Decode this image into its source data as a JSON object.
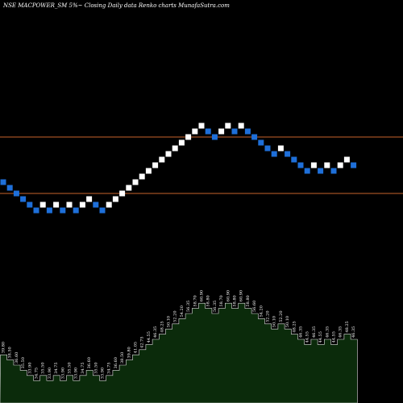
{
  "chart_data": {
    "type": "renko",
    "title": "NSE MACPOWER_SM 5%~   Closing Daily data  Renko  charts MunafaSutra.com",
    "levels": [
      {
        "price": 2.0,
        "color": "#c8642d"
      },
      {
        "price": 0.0,
        "color": "#c8642d"
      }
    ],
    "colors": {
      "up": "#ffffff",
      "down": "#1e6fd9",
      "background": "#000000",
      "volume_fill": "#0b2b0b",
      "volume_line": "#e0e0e0"
    },
    "bricks": [
      {
        "dir": "down",
        "level": 0.4
      },
      {
        "dir": "down",
        "level": 0.2
      },
      {
        "dir": "down",
        "level": 0.0
      },
      {
        "dir": "down",
        "level": -0.2
      },
      {
        "dir": "down",
        "level": -0.4
      },
      {
        "dir": "down",
        "level": -0.6
      },
      {
        "dir": "up",
        "level": -0.4
      },
      {
        "dir": "down",
        "level": -0.6
      },
      {
        "dir": "up",
        "level": -0.4
      },
      {
        "dir": "down",
        "level": -0.6
      },
      {
        "dir": "up",
        "level": -0.4
      },
      {
        "dir": "down",
        "level": -0.6
      },
      {
        "dir": "up",
        "level": -0.4
      },
      {
        "dir": "up",
        "level": -0.2
      },
      {
        "dir": "down",
        "level": -0.4
      },
      {
        "dir": "down",
        "level": -0.6
      },
      {
        "dir": "up",
        "level": -0.4
      },
      {
        "dir": "up",
        "level": -0.2
      },
      {
        "dir": "up",
        "level": 0.0
      },
      {
        "dir": "up",
        "level": 0.2
      },
      {
        "dir": "up",
        "level": 0.4
      },
      {
        "dir": "up",
        "level": 0.6
      },
      {
        "dir": "up",
        "level": 0.8
      },
      {
        "dir": "up",
        "level": 1.0
      },
      {
        "dir": "up",
        "level": 1.2
      },
      {
        "dir": "up",
        "level": 1.4
      },
      {
        "dir": "up",
        "level": 1.6
      },
      {
        "dir": "up",
        "level": 1.8
      },
      {
        "dir": "up",
        "level": 2.0
      },
      {
        "dir": "up",
        "level": 2.2
      },
      {
        "dir": "up",
        "level": 2.4
      },
      {
        "dir": "down",
        "level": 2.2
      },
      {
        "dir": "down",
        "level": 2.0
      },
      {
        "dir": "up",
        "level": 2.2
      },
      {
        "dir": "up",
        "level": 2.4
      },
      {
        "dir": "down",
        "level": 2.2
      },
      {
        "dir": "up",
        "level": 2.4
      },
      {
        "dir": "down",
        "level": 2.2
      },
      {
        "dir": "down",
        "level": 2.0
      },
      {
        "dir": "down",
        "level": 1.8
      },
      {
        "dir": "down",
        "level": 1.6
      },
      {
        "dir": "down",
        "level": 1.4
      },
      {
        "dir": "up",
        "level": 1.6
      },
      {
        "dir": "down",
        "level": 1.4
      },
      {
        "dir": "down",
        "level": 1.2
      },
      {
        "dir": "down",
        "level": 1.0
      },
      {
        "dir": "down",
        "level": 0.8
      },
      {
        "dir": "up",
        "level": 1.0
      },
      {
        "dir": "down",
        "level": 0.8
      },
      {
        "dir": "up",
        "level": 1.0
      },
      {
        "dir": "down",
        "level": 0.8
      },
      {
        "dir": "up",
        "level": 1.0
      },
      {
        "dir": "up",
        "level": 1.2
      },
      {
        "dir": "down",
        "level": 1.0
      }
    ],
    "volume_labels": [
      "39.80",
      "38.50",
      "36.60",
      "35.50",
      "33.90",
      "34.75",
      "35.50",
      "33.90",
      "34.75",
      "33.90",
      "35.50",
      "33.90",
      "34.75",
      "36.60",
      "35.50",
      "33.90",
      "34.75",
      "36.60",
      "38.50",
      "39.80",
      "41.05",
      "42.75",
      "44.55",
      "46.35",
      "48.25",
      "50.10",
      "52.20",
      "54.20",
      "56.35",
      "58.70",
      "60.90",
      "58.80",
      "56.35",
      "58.70",
      "60.90",
      "58.80",
      "60.90",
      "58.80",
      "56.60",
      "54.20",
      "52.20",
      "50.10",
      "52.20",
      "50.10",
      "48.25",
      "46.35",
      "44.55",
      "46.35",
      "44.55",
      "46.35",
      "44.55",
      "46.35",
      "48.25",
      "46.35"
    ]
  }
}
